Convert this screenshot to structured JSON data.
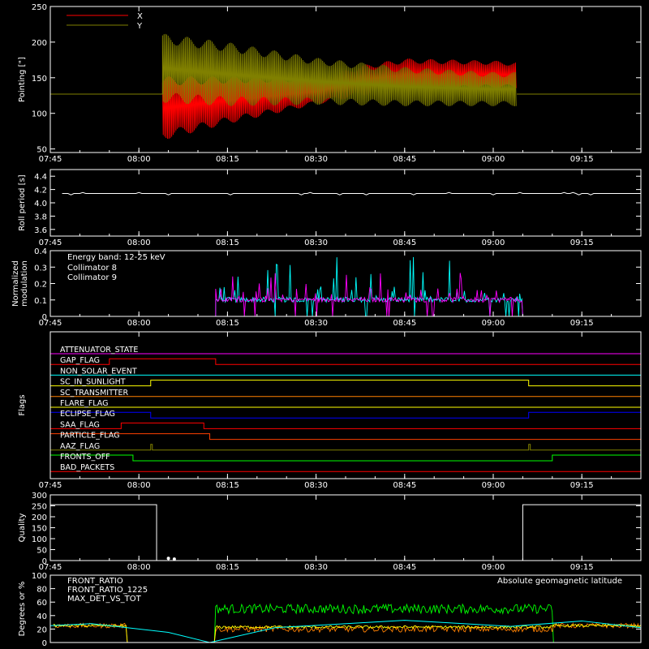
{
  "chart_data": [
    {
      "id": "pointing",
      "type": "line",
      "title": "",
      "ylabel": "Pointing [\"]",
      "xlim": [
        "07:45",
        "09:25"
      ],
      "ylim": [
        45,
        250
      ],
      "yticks": [
        50,
        100,
        150,
        200,
        250
      ],
      "xticks": [
        "07:45",
        "08:00",
        "08:15",
        "08:30",
        "08:45",
        "09:00",
        "09:15"
      ],
      "legend_position": "top-left",
      "series": [
        {
          "name": "X",
          "color": "#ff0000",
          "baseline": 127,
          "active_range": [
            "08:04",
            "09:04"
          ],
          "envelope": {
            "x": [
              "08:04",
              "08:15",
              "08:30",
              "08:38",
              "08:45",
              "09:00",
              "09:04"
            ],
            "lower": [
              62,
              85,
              112,
              125,
              130,
              135,
              135
            ],
            "upper": [
              152,
              152,
              150,
              168,
              177,
              174,
              172
            ]
          }
        },
        {
          "name": "Y",
          "color": "#808000",
          "baseline": 127,
          "active_range": [
            "08:04",
            "09:04"
          ],
          "envelope": {
            "x": [
              "08:04",
              "08:15",
              "08:30",
              "08:45",
              "09:00",
              "09:04"
            ],
            "lower": [
              115,
              110,
              112,
              110,
              110,
              110
            ],
            "upper": [
              212,
              200,
              178,
              165,
              158,
              158
            ]
          }
        }
      ]
    },
    {
      "id": "roll_period",
      "type": "line",
      "ylabel": "Roll period [s]",
      "xlim": [
        "07:45",
        "09:25"
      ],
      "ylim": [
        3.5,
        4.5
      ],
      "yticks": [
        3.6,
        3.8,
        4.0,
        4.2,
        4.4
      ],
      "ytick_labels": [
        "3.6",
        "3.8",
        "4.0",
        "4.2",
        "4.4"
      ],
      "xticks": [
        "07:45",
        "08:00",
        "08:15",
        "08:30",
        "08:45",
        "09:00",
        "09:15"
      ],
      "series": [
        {
          "name": "",
          "color": "#ffffff",
          "value": 4.14,
          "range": [
            "07:47",
            "09:25"
          ]
        }
      ]
    },
    {
      "id": "modulation",
      "type": "line",
      "ylabel": "Normalized modulation",
      "ylabel_lines": [
        "Normalized",
        "modulation"
      ],
      "xlim": [
        "07:45",
        "09:25"
      ],
      "ylim": [
        0,
        0.4
      ],
      "yticks": [
        0,
        0.1,
        0.2,
        0.3,
        0.4
      ],
      "ytick_labels": [
        "0",
        "0.1",
        "0.2",
        "0.3",
        "0.4"
      ],
      "xticks": [
        "07:45",
        "08:00",
        "08:15",
        "08:30",
        "08:45",
        "09:00",
        "09:15"
      ],
      "annotation": "Energy band: 12-25 keV",
      "legend_position": "top-left",
      "active_range": [
        "08:13",
        "09:05"
      ],
      "series": [
        {
          "name": "Collimator 8",
          "color": "#00ffff",
          "baseline": 0.1,
          "peak": 0.37
        },
        {
          "name": "Collimator 9",
          "color": "#ff00ff",
          "baseline": 0.1,
          "peak": 0.27
        }
      ]
    },
    {
      "id": "flags",
      "type": "line",
      "ylabel": "Flags",
      "xlim": [
        "07:45",
        "09:25"
      ],
      "xticks": [
        "07:45",
        "08:00",
        "08:15",
        "08:30",
        "08:45",
        "09:00",
        "09:15"
      ],
      "flags": [
        {
          "name": "ATTENUATOR_STATE",
          "color": "#ff00ff",
          "segments": []
        },
        {
          "name": "GAP_FLAG",
          "color": "#ff0000",
          "segments": [
            [
              "07:55",
              "08:13"
            ]
          ]
        },
        {
          "name": "NON_SOLAR_EVENT",
          "color": "#00ffff",
          "segments": []
        },
        {
          "name": "SC_IN_SUNLIGHT",
          "color": "#ffff00",
          "segments": [
            [
              "08:02",
              "09:06"
            ]
          ]
        },
        {
          "name": "SC_TRANSMITTER",
          "color": "#ff8000",
          "segments": []
        },
        {
          "name": "FLARE_FLAG",
          "color": "#ffff00",
          "segments": []
        },
        {
          "name": "ECLIPSE_FLAG",
          "color": "#0000ff",
          "segments": [
            [
              "07:45",
              "08:02"
            ],
            [
              "09:06",
              "09:25"
            ]
          ]
        },
        {
          "name": "SAA_FLAG",
          "color": "#ff0000",
          "segments": [
            [
              "07:57",
              "08:11"
            ]
          ]
        },
        {
          "name": "PARTICLE_FLAG",
          "color": "#ff4000",
          "segments": [
            [
              "07:45",
              "08:12"
            ]
          ]
        },
        {
          "name": "AAZ_FLAG",
          "color": "#808000",
          "segments": [
            [
              "08:02",
              "08:02"
            ],
            [
              "09:06",
              "09:06"
            ]
          ]
        },
        {
          "name": "FRONTS_OFF",
          "color": "#00ff00",
          "segments": [
            [
              "07:45",
              "07:59"
            ],
            [
              "09:10",
              "09:25"
            ]
          ]
        },
        {
          "name": "BAD_PACKETS",
          "color": "#ff0000",
          "segments": []
        }
      ]
    },
    {
      "id": "quality",
      "type": "line",
      "ylabel": "Quality",
      "xlim": [
        "07:45",
        "09:25"
      ],
      "ylim": [
        0,
        300
      ],
      "yticks": [
        0,
        50,
        100,
        150,
        200,
        250,
        300
      ],
      "xticks": [
        "07:45",
        "08:00",
        "08:15",
        "08:30",
        "08:45",
        "09:00",
        "09:15"
      ],
      "series": [
        {
          "name": "",
          "color": "#ffffff",
          "x": [
            "07:45",
            "08:03",
            "08:03",
            "09:05",
            "09:05",
            "09:25"
          ],
          "y": [
            255,
            255,
            0,
            0,
            255,
            255
          ]
        }
      ],
      "points": [
        [
          "08:05",
          10
        ],
        [
          "08:06",
          7
        ]
      ]
    },
    {
      "id": "ratios",
      "type": "line",
      "ylabel": "Degrees or %",
      "xlim": [
        "07:45",
        "09:25"
      ],
      "ylim": [
        0,
        100
      ],
      "yticks": [
        0,
        20,
        40,
        60,
        80,
        100
      ],
      "legend_position": "top-left",
      "series": [
        {
          "name": "FRONT_RATIO",
          "color": "#ffff00",
          "levels": {
            "pre": 25,
            "mid": 23,
            "post": 25
          }
        },
        {
          "name": "FRONT_RATIO_1225",
          "color": "#00ff00",
          "levels": {
            "pre": 0,
            "mid": 50,
            "post": 0
          }
        },
        {
          "name": "MAX_DET_VS_TOT",
          "color": "#ff8000",
          "levels": {
            "pre": 25,
            "mid": 20,
            "post": 25
          }
        },
        {
          "name": "Absolute geomagnetic latitude",
          "color": "#00ffff",
          "x": [
            "07:45",
            "07:52",
            "08:05",
            "08:12",
            "08:23",
            "08:45",
            "09:03",
            "09:15",
            "09:25"
          ],
          "y": [
            25,
            28,
            15,
            0,
            22,
            33,
            24,
            32,
            22
          ]
        }
      ]
    }
  ]
}
